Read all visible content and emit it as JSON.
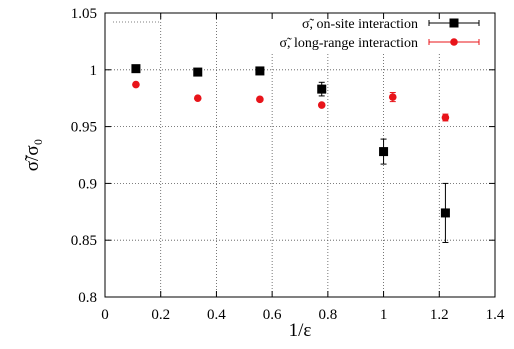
{
  "chart_data": {
    "type": "scatter",
    "xlabel": "1/ε",
    "ylabel": "σ̃/σ₀",
    "xlim": [
      0,
      1.4
    ],
    "ylim": [
      0.8,
      1.05
    ],
    "x_ticks": [
      "0",
      "0.2",
      "0.4",
      "0.6",
      "0.8",
      "1",
      "1.2",
      "1.4"
    ],
    "y_ticks": [
      "0.8",
      "0.85",
      "0.9",
      "0.95",
      "1",
      "1.05"
    ],
    "grid": true,
    "legend_position": "top-right",
    "series": [
      {
        "name": "σ̃, on-site interaction",
        "marker": "square",
        "color": "#000000",
        "points": [
          {
            "x": 0.111,
            "y": 1.001,
            "err": 0.002
          },
          {
            "x": 0.333,
            "y": 0.998,
            "err": 0.002
          },
          {
            "x": 0.556,
            "y": 0.999,
            "err": 0.002
          },
          {
            "x": 0.778,
            "y": 0.983,
            "err": 0.006
          },
          {
            "x": 1.0,
            "y": 0.928,
            "err": 0.011
          },
          {
            "x": 1.222,
            "y": 0.874,
            "err": 0.026
          }
        ]
      },
      {
        "name": "σ̃, long-range interaction",
        "marker": "circle",
        "color": "#e8141a",
        "points": [
          {
            "x": 0.111,
            "y": 0.987,
            "err": 0.0
          },
          {
            "x": 0.333,
            "y": 0.975,
            "err": 0.0
          },
          {
            "x": 0.556,
            "y": 0.974,
            "err": 0.0
          },
          {
            "x": 0.778,
            "y": 0.969,
            "err": 0.0
          },
          {
            "x": 1.033,
            "y": 0.976,
            "err": 0.004
          },
          {
            "x": 1.222,
            "y": 0.958,
            "err": 0.003
          }
        ]
      }
    ]
  }
}
